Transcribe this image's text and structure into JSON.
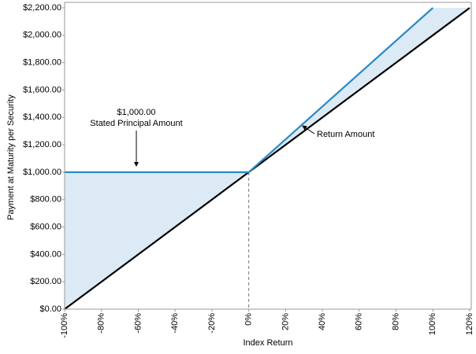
{
  "chart_data": {
    "type": "line",
    "x_label": "Index Return",
    "y_label": "Payment at Maturity per Security",
    "x": [
      -100,
      0,
      100,
      120
    ],
    "series": [
      {
        "color": "#2a8ac4",
        "values": [
          1000,
          1000,
          2200,
          null
        ]
      },
      {
        "name": "Return Amount",
        "color": "#000000",
        "values": [
          0,
          1000,
          2000,
          2200
        ]
      }
    ],
    "fill_color": "#dceaf5",
    "annotations": [
      "$1,000.00",
      "Stated Principal Amount"
    ],
    "xlim": [
      -100,
      120
    ],
    "ylim": [
      0,
      2200
    ],
    "xticks": [
      {
        "value": -100,
        "label": "-100%"
      },
      {
        "value": -80,
        "label": "-80%"
      },
      {
        "value": -60,
        "label": "-60%"
      },
      {
        "value": -40,
        "label": "-40%"
      },
      {
        "value": -20,
        "label": "-20%"
      },
      {
        "value": 0,
        "label": "0%"
      },
      {
        "value": 20,
        "label": "20%"
      },
      {
        "value": 40,
        "label": "40%"
      },
      {
        "value": 60,
        "label": "60%"
      },
      {
        "value": 80,
        "label": "80%"
      },
      {
        "value": 100,
        "label": "100%"
      },
      {
        "value": 120,
        "label": "120%"
      }
    ],
    "yticks": [
      {
        "value": 0,
        "label": "$0.00"
      },
      {
        "value": 200,
        "label": "$200.00"
      },
      {
        "value": 400,
        "label": "$400.00"
      },
      {
        "value": 600,
        "label": "$600.00"
      },
      {
        "value": 800,
        "label": "$800.00"
      },
      {
        "value": 1000,
        "label": "$1,000.00"
      },
      {
        "value": 1200,
        "label": "$1,200.00"
      },
      {
        "value": 1400,
        "label": "$1,400.00"
      },
      {
        "value": 1600,
        "label": "$1,600.00"
      },
      {
        "value": 1800,
        "label": "$1,800.00"
      },
      {
        "value": 2000,
        "label": "$2,000.00"
      },
      {
        "value": 2200,
        "label": "$2,200.00"
      }
    ]
  }
}
